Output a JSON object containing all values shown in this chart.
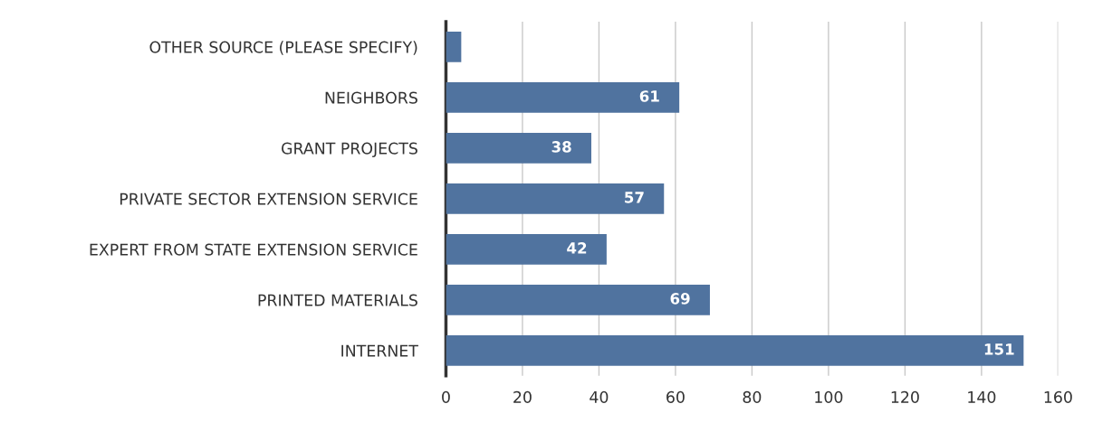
{
  "chart_data": {
    "type": "bar",
    "orientation": "horizontal",
    "categories": [
      "OTHER SOURCE (PLEASE SPECIFY)",
      "NEIGHBORS",
      "GRANT PROJECTS",
      "PRIVATE SECTOR EXTENSION SERVICE",
      "EXPERT FROM STATE EXTENSION SERVICE",
      "PRINTED MATERIALS",
      "INTERNET"
    ],
    "values": [
      4,
      61,
      38,
      57,
      42,
      69,
      151
    ],
    "value_labels": [
      null,
      "61",
      "38",
      "57",
      "42",
      "69",
      "151"
    ],
    "color": "#50739f",
    "xlim": [
      0,
      160
    ],
    "xticks": [
      0,
      20,
      40,
      60,
      80,
      100,
      120,
      140,
      160
    ],
    "grid": "x"
  }
}
